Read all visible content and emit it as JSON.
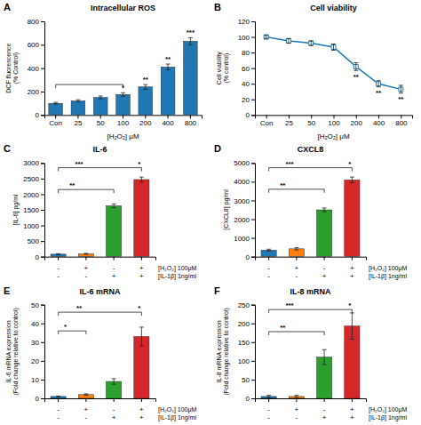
{
  "chart_data": [
    {
      "type": "bar",
      "panel": "A",
      "title": "Intracellular ROS",
      "xlabel": "[H₂O₂] μM",
      "ylabel": "DCF fluorescence\n(% Control)",
      "categories": [
        "Con",
        "25",
        "50",
        "100",
        "200",
        "400",
        "800"
      ],
      "values": [
        100,
        120,
        150,
        175,
        240,
        410,
        630
      ],
      "errors": [
        8,
        10,
        12,
        15,
        20,
        25,
        30
      ],
      "sig_labels": [
        null,
        null,
        null,
        "*",
        "**",
        "**",
        "***"
      ],
      "brackets": [
        {
          "from": 0,
          "to": 3,
          "y": 260
        }
      ],
      "ylim": [
        0,
        800
      ],
      "yticks": [
        0,
        200,
        400,
        600,
        800
      ],
      "grid": false
    },
    {
      "type": "line",
      "panel": "B",
      "title": "Cell viability",
      "xlabel": "[H₂O₂] μM",
      "ylabel": "Cell viability\n(% control)",
      "categories": [
        "Con",
        "25",
        "50",
        "100",
        "200",
        "400",
        "800"
      ],
      "values": [
        100,
        95,
        92,
        87,
        62,
        40,
        33
      ],
      "errors": [
        2,
        3,
        3,
        4,
        5,
        4,
        5
      ],
      "sig_labels": [
        null,
        null,
        null,
        null,
        "**",
        "**",
        "**"
      ],
      "marker": "square",
      "line_style": "solid",
      "ylim": [
        0,
        120
      ],
      "yticks": [
        0,
        20,
        40,
        60,
        80,
        100,
        120
      ],
      "grid": false
    },
    {
      "type": "bar",
      "panel": "C",
      "title": "IL-6",
      "ylabel": "[IL-6] pg/ml",
      "categories": [
        null,
        null,
        null,
        null
      ],
      "values": [
        80,
        90,
        1630,
        2470
      ],
      "errors": [
        15,
        15,
        60,
        80
      ],
      "x_rows": [
        {
          "name": "[H₂O₂] 100μM",
          "labels": [
            "-",
            "+",
            "-",
            "+"
          ]
        },
        {
          "name": "[IL-1β] 1ng/ml",
          "labels": [
            "-",
            "-",
            "+",
            "+"
          ]
        }
      ],
      "brackets": [
        {
          "from": 0,
          "to": 3,
          "y": 2850,
          "labels": [
            "***",
            "*"
          ]
        },
        {
          "from": 0,
          "to": 2,
          "y": 2150,
          "labels": [
            "**"
          ]
        }
      ],
      "ylim": [
        0,
        3000
      ],
      "yticks": [
        0,
        500,
        1000,
        1500,
        2000,
        2500,
        3000
      ],
      "grid": false
    },
    {
      "type": "bar",
      "panel": "D",
      "title": "CXCL8",
      "ylabel": "[CXCL8] pg/ml",
      "categories": [
        null,
        null,
        null,
        null
      ],
      "values": [
        350,
        420,
        2500,
        4100
      ],
      "errors": [
        50,
        60,
        100,
        150
      ],
      "x_rows": [
        {
          "name": "[H₂O₂] 100μM",
          "labels": [
            "-",
            "+",
            "-",
            "+"
          ]
        },
        {
          "name": "[IL-1β] 1ng/ml",
          "labels": [
            "-",
            "-",
            "+",
            "+"
          ]
        }
      ],
      "brackets": [
        {
          "from": 0,
          "to": 3,
          "y": 4750,
          "labels": [
            "***",
            "*"
          ]
        },
        {
          "from": 0,
          "to": 2,
          "y": 3600,
          "labels": [
            "**"
          ]
        }
      ],
      "ylim": [
        0,
        5000
      ],
      "yticks": [
        0,
        1000,
        2000,
        3000,
        4000,
        5000
      ],
      "grid": false
    },
    {
      "type": "bar",
      "panel": "E",
      "title": "IL-6 mRNA",
      "ylabel": "IL-6 mRNA expression\n(Fold change relative to control)",
      "categories": [
        null,
        null,
        null,
        null
      ],
      "values": [
        1,
        2,
        9,
        33
      ],
      "errors": [
        0.2,
        0.4,
        1.5,
        5
      ],
      "x_rows": [
        {
          "name": "[H₂O₂] 100μM",
          "labels": [
            "-",
            "+",
            "-",
            "+"
          ]
        },
        {
          "name": "[IL-1β] 1ng/ml",
          "labels": [
            "-",
            "-",
            "+",
            "+"
          ]
        }
      ],
      "brackets": [
        {
          "from": 0,
          "to": 3,
          "y": 46,
          "labels": [
            "**",
            "*"
          ]
        },
        {
          "from": 0,
          "to": 1,
          "y": 36,
          "labels": [
            "*"
          ]
        }
      ],
      "ylim": [
        0,
        50
      ],
      "yticks": [
        0,
        10,
        20,
        30,
        40,
        50
      ],
      "grid": false
    },
    {
      "type": "bar",
      "panel": "F",
      "title": "IL-8 mRNA",
      "ylabel": "IL-8 mRNA expression\n(Fold change relative to control)",
      "categories": [
        null,
        null,
        null,
        null
      ],
      "values": [
        5,
        5,
        110,
        193
      ],
      "errors": [
        3,
        3,
        20,
        35
      ],
      "x_rows": [
        {
          "name": "[H₂O₂] 100μM",
          "labels": [
            "-",
            "+",
            "-",
            "+"
          ]
        },
        {
          "name": "[IL-1β] 1ng/ml",
          "labels": [
            "-",
            "-",
            "+",
            "+"
          ]
        }
      ],
      "brackets": [
        {
          "from": 0,
          "to": 3,
          "y": 237,
          "labels": [
            "***",
            "*"
          ]
        },
        {
          "from": 0,
          "to": 2,
          "y": 178,
          "labels": [
            "**"
          ]
        }
      ],
      "ylim": [
        0,
        250
      ],
      "yticks": [
        0,
        50,
        100,
        150,
        200,
        250
      ],
      "grid": false
    }
  ]
}
